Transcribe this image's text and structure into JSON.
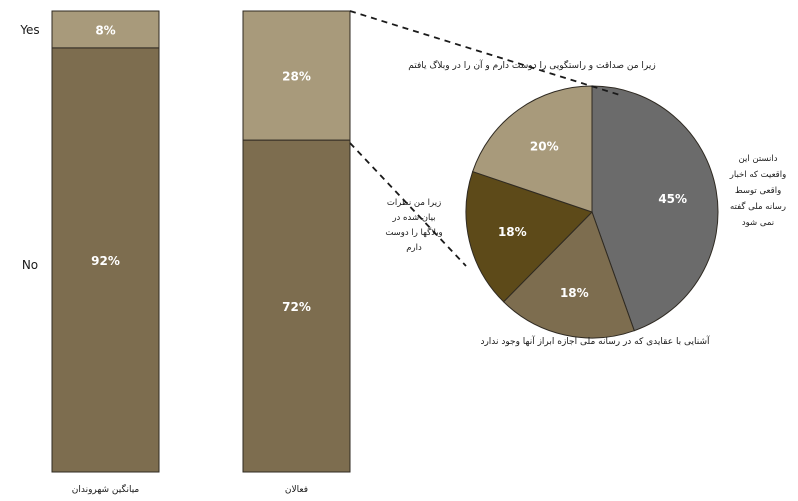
{
  "chart_data": [
    {
      "type": "bar",
      "stacked": true,
      "orientation": "vertical",
      "categories": [
        "میانگین شهروندان",
        "فعالان"
      ],
      "category_labels_rtl": true,
      "series": [
        {
          "name": "No",
          "values": [
            92,
            72
          ],
          "color": "#7d6d4f"
        },
        {
          "name": "Yes",
          "values": [
            8,
            28
          ],
          "color": "#a89a7b"
        }
      ],
      "data_labels": {
        "series_0": [
          "92%",
          "72%"
        ],
        "series_1": [
          "8%",
          "28%"
        ]
      },
      "ylim": [
        0,
        100
      ],
      "legend": "series names printed on left side",
      "grid": false
    },
    {
      "type": "pie",
      "start_angle": "top (12 o'clock)",
      "direction": "clockwise",
      "slices": [
        {
          "label": "دانستن این واقعیت که اخبار واقعی توسط رسانه ملی گفته نمی شود",
          "value": 45,
          "display": "45%",
          "color": "#6b6b6b"
        },
        {
          "label": "آشنایی با عقایدی که در رسانه ملی اجازه ابراز آنها وجود ندارد",
          "value": 18,
          "display": "18%",
          "color": "#7d6d4f"
        },
        {
          "label": "زیرا من نظرات بیان شده در وبلاگها را دوست دارم",
          "value": 18,
          "display": "18%",
          "color": "#5d4a19"
        },
        {
          "label": "زیرا من صداقت و راستگویی را دوست دارم و آن را در وبلاگ یافتم",
          "value": 20,
          "display": "20%",
          "color": "#a89a7b"
        }
      ],
      "annotation_lines": [
        "دانستن این",
        "واقعیت که اخبار",
        "واقعی توسط",
        "رسانه ملی گفته",
        "نمی شود"
      ],
      "blog_views_lines": [
        "زیرا من نظرات",
        "بیان شده در",
        "وبلاگها را دوست",
        "دارم"
      ]
    }
  ],
  "colors": {
    "background": "#ffffff",
    "bar_border": "#2f2a22",
    "label_text": "#ffffff",
    "annotation_text": "#1a1a1a",
    "connector": "#1a1a1a"
  }
}
